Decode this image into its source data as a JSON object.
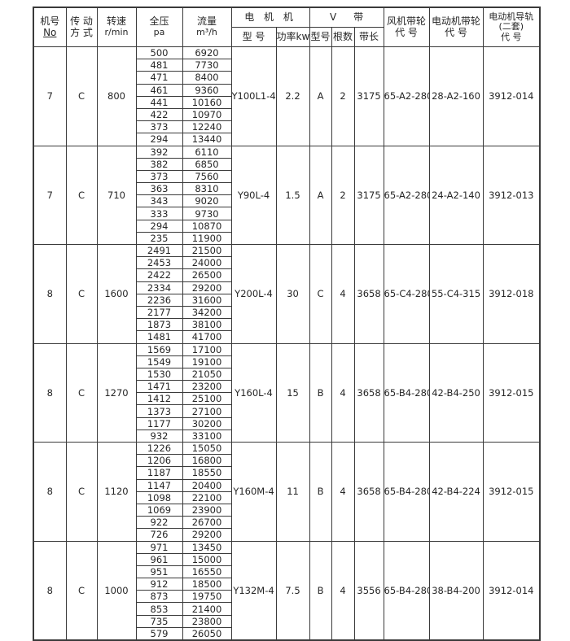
{
  "table": {
    "header": {
      "machine_no_label": "机号",
      "machine_no_symbol": "No",
      "drive_line1": "传 动",
      "drive_line2": "方 式",
      "speed_label": "转速",
      "speed_unit": "r/min",
      "pressure_label": "全压",
      "pressure_unit": "pa",
      "flow_label": "流量",
      "flow_unit": "m³/h",
      "motor_group": "电 机 机",
      "motor_model": "型 号",
      "motor_power": "功率kw",
      "vbelt_group_left": "V",
      "vbelt_group_right": "带",
      "vbelt_model": "型号",
      "vbelt_count": "根数",
      "vbelt_length": "带长",
      "fan_pulley_line1": "风机带轮",
      "fan_pulley_line2": "代  号",
      "motor_pulley_line1": "电动机带轮",
      "motor_pulley_line2": "代  号",
      "motor_rail_line1": "电动机导轨",
      "motor_rail_line2": "(二套)",
      "motor_rail_line3": "代 号"
    },
    "blocks": [
      {
        "machine_no": "7",
        "drive": "C",
        "speed": "800",
        "rows": [
          [
            "500",
            "6920"
          ],
          [
            "481",
            "7730"
          ],
          [
            "471",
            "8400"
          ],
          [
            "461",
            "9360"
          ],
          [
            "441",
            "10160"
          ],
          [
            "422",
            "10970"
          ],
          [
            "373",
            "12240"
          ],
          [
            "294",
            "13440"
          ]
        ],
        "motor_model": "Y100L1-4",
        "power_kw": "2.2",
        "belt_type": "A",
        "belt_count": "2",
        "belt_length": "3175",
        "fan_pulley": "65-A2-280",
        "motor_pulley": "28-A2-160",
        "rail_code": "3912-014"
      },
      {
        "machine_no": "7",
        "drive": "C",
        "speed": "710",
        "rows": [
          [
            "392",
            "6110"
          ],
          [
            "382",
            "6850"
          ],
          [
            "373",
            "7560"
          ],
          [
            "363",
            "8310"
          ],
          [
            "343",
            "9020"
          ],
          [
            "333",
            "9730"
          ],
          [
            "294",
            "10870"
          ],
          [
            "235",
            "11900"
          ]
        ],
        "motor_model": "Y90L-4",
        "power_kw": "1.5",
        "belt_type": "A",
        "belt_count": "2",
        "belt_length": "3175",
        "fan_pulley": "65-A2-280",
        "motor_pulley": "24-A2-140",
        "rail_code": "3912-013"
      },
      {
        "machine_no": "8",
        "drive": "C",
        "speed": "1600",
        "rows": [
          [
            "2491",
            "21500"
          ],
          [
            "2453",
            "24000"
          ],
          [
            "2422",
            "26500"
          ],
          [
            "2334",
            "29200"
          ],
          [
            "2236",
            "31600"
          ],
          [
            "2177",
            "34200"
          ],
          [
            "1873",
            "38100"
          ],
          [
            "1481",
            "41700"
          ]
        ],
        "motor_model": "Y200L-4",
        "power_kw": "30",
        "belt_type": "C",
        "belt_count": "4",
        "belt_length": "3658",
        "fan_pulley": "65-C4-280",
        "motor_pulley": "55-C4-315",
        "rail_code": "3912-018"
      },
      {
        "machine_no": "8",
        "drive": "C",
        "speed": "1270",
        "rows": [
          [
            "1569",
            "17100"
          ],
          [
            "1549",
            "19100"
          ],
          [
            "1530",
            "21050"
          ],
          [
            "1471",
            "23200"
          ],
          [
            "1412",
            "25100"
          ],
          [
            "1373",
            "27100"
          ],
          [
            "1177",
            "30200"
          ],
          [
            "932",
            "33100"
          ]
        ],
        "motor_model": "Y160L-4",
        "power_kw": "15",
        "belt_type": "B",
        "belt_count": "4",
        "belt_length": "3658",
        "fan_pulley": "65-B4-280",
        "motor_pulley": "42-B4-250",
        "rail_code": "3912-015"
      },
      {
        "machine_no": "8",
        "drive": "C",
        "speed": "1120",
        "rows": [
          [
            "1226",
            "15050"
          ],
          [
            "1206",
            "16800"
          ],
          [
            "1187",
            "18550"
          ],
          [
            "1147",
            "20400"
          ],
          [
            "1098",
            "22100"
          ],
          [
            "1069",
            "23900"
          ],
          [
            "922",
            "26700"
          ],
          [
            "726",
            "29200"
          ]
        ],
        "motor_model": "Y160M-4",
        "power_kw": "11",
        "belt_type": "B",
        "belt_count": "4",
        "belt_length": "3658",
        "fan_pulley": "65-B4-280",
        "motor_pulley": "42-B4-224",
        "rail_code": "3912-015"
      },
      {
        "machine_no": "8",
        "drive": "C",
        "speed": "1000",
        "rows": [
          [
            "971",
            "13450"
          ],
          [
            "961",
            "15000"
          ],
          [
            "951",
            "16550"
          ],
          [
            "912",
            "18500"
          ],
          [
            "873",
            "19750"
          ],
          [
            "853",
            "21400"
          ],
          [
            "735",
            "23800"
          ],
          [
            "579",
            "26050"
          ]
        ],
        "motor_model": "Y132M-4",
        "power_kw": "7.5",
        "belt_type": "B",
        "belt_count": "4",
        "belt_length": "3556",
        "fan_pulley": "65-B4-280",
        "motor_pulley": "38-B4-200",
        "rail_code": "3912-014"
      }
    ]
  }
}
